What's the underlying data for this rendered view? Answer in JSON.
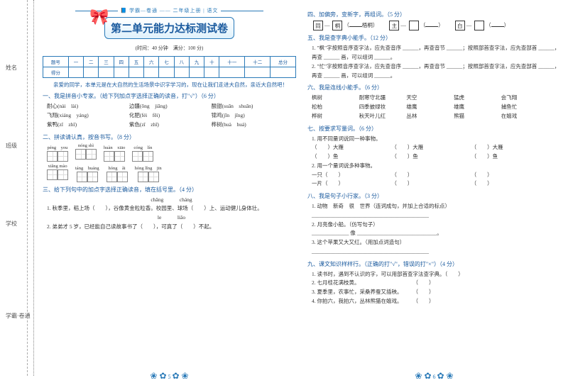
{
  "meta": {
    "series": "学霸—卷通",
    "grade": "二年级上册 | 语文",
    "title": "第二单元能力达标测试卷",
    "timing": "(时间：40 分钟　满分：100 分)"
  },
  "score": {
    "headers": [
      "题号",
      "一",
      "二",
      "三",
      "四",
      "五",
      "六",
      "七",
      "八",
      "九",
      "十",
      "十一",
      "十二",
      "总分"
    ],
    "row": "得分"
  },
  "intro": "亲爱的同学，本单元是在大自然的生活场景中识字学习的，现在让我们走进大自然，亲近大自然吧！",
  "s1": {
    "t": "一、我是拼音小专家。（给下列加点字选择正确的读音，打\"√\"）（6 分）",
    "items": [
      [
        "耐心(nài　lài)",
        "边疆(ōng　jiāng)",
        "酸甜(suān　shuān)"
      ],
      [
        "飞翔(xiáng　yáng)",
        "化肥(féi　fěi)",
        "锦鸡(jīn　jǐng)"
      ],
      [
        "紫鸭(zǐ　zhǐ)",
        "紫色(zǐ　zhǐ)",
        "桦树(huà　huá)"
      ]
    ]
  },
  "s2": {
    "t": "二、拼读请认真，按音书写。（8 分）",
    "r1": [
      "péng　you",
      "nóng shì",
      "huàn　xiāo",
      "cóng　lín"
    ],
    "r2": [
      "xiǎng mào",
      "táng　huáng",
      "hóng　ǎi",
      "hóng lǐng　jīn"
    ]
  },
  "s3": {
    "t": "三、给下列句中的加点字选择正确读音，填在括号里。（4 分）",
    "l1": "chǎng　　　cháng",
    "l2": "1. 秋季里，稻上场（　　），谷像黄金粒粒香。校园里、球场（　　）上、运动健儿身体壮。",
    "l3": "le　　　liǎo",
    "l4": "2. 弟弟才 5 岁，已经能自己读故事书了（　　），可真了（　　）不起。"
  },
  "s4": {
    "t": "四、加偏旁，变新字，再组词。（5 分）",
    "c": [
      [
        "同",
        "桐",
        "梧桐"
      ],
      [
        "主",
        "",
        ""
      ],
      [
        "白",
        "",
        ""
      ]
    ]
  },
  "s5": {
    "t": "五、我是查字典小能手。（12 分）",
    "l": [
      "1. \"枫\"字按照音序查字法，应先查音序 ______，再查音节 ______；按照部首查字法，应先查部首 ______，再查 ______ 画，可以组词 ______。",
      "2. \"忙\"字按照音序查字法，应先查音序 ______，再查音节 ______；按照部首查字法，应先查部首 ______，再查 ______ 画，可以组词 ______。"
    ]
  },
  "s6": {
    "t": "六、我是连线小能手。（6 分）",
    "rows": [
      [
        "枫树",
        "耐寒守北疆",
        "天空",
        "猛虎",
        "会飞翔"
      ],
      [
        "松柏",
        "四季披绿妆",
        "雄鹰",
        "雄鹰",
        "捕鱼忙"
      ],
      [
        "桦树",
        "秋天叶儿红",
        "丛林",
        "熊猫",
        "在嬉戏"
      ]
    ]
  },
  "s7": {
    "t": "七、按要求写量词。（6 分）",
    "p1": "1. 用不同量词说同一种事物。",
    "p1r": [
      [
        "（　　）大雁",
        "（　　）大雁",
        "（　　）大雁"
      ],
      [
        "（　　）鱼",
        "（　　）鱼",
        "（　　）鱼"
      ]
    ],
    "p2": "2. 用一个量词说多种事物。",
    "p2r": [
      [
        "一只（　　）",
        "（　　）",
        "（　　）"
      ],
      [
        "一片（　　）",
        "（　　）",
        "（　　）"
      ]
    ]
  },
  "s8": {
    "t": "八、我是句子小行家。（3 分）",
    "l": [
      "1. 动物　新奇　很　世界（连词成句，并加上合适的标点）",
      "____________________________________________",
      "2. 月亮像小船。（仿写句子）",
      "______________ 像 ______________________________。",
      "3. 这个苹果又大又红。（用加点词造句）",
      "____________________________________________"
    ]
  },
  "s9": {
    "t": "九、课文知识样样行。（正确的打\"√\"，错误的打\"×\"）（4 分）",
    "l": [
      "1. 读书时，遇到不认识的字，可以用部首查字法查字典。（　　）",
      "2. 七月桂花满枝黄。　　　　　　　　　　　（　　）",
      "3. 夏季里，农事忙，采桑养蚕又插秧。　　　（　　）",
      "4. 你拍六，我拍六，丛林熊猫在嬉戏。　　　（　　）"
    ]
  },
  "side": [
    "姓名",
    "班级",
    "学校",
    "学霸·卷通"
  ],
  "pg": [
    "5",
    "6"
  ]
}
